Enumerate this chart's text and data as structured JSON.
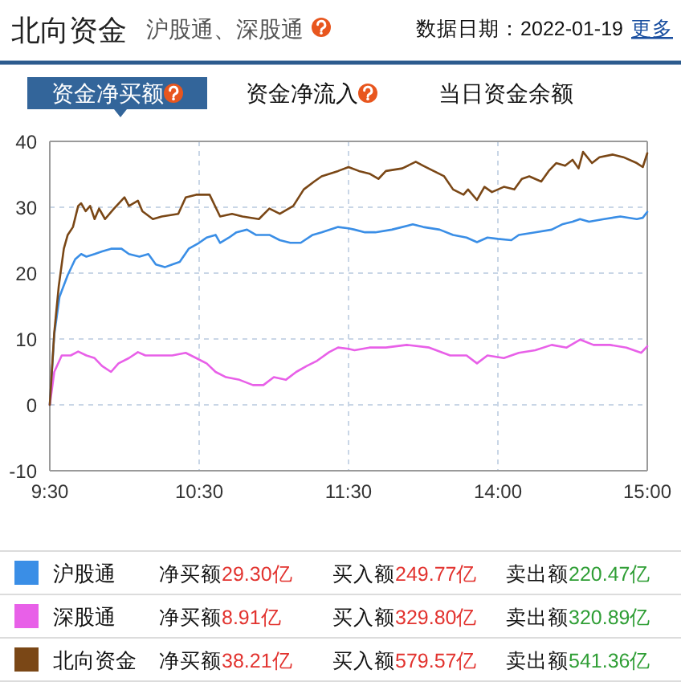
{
  "chart_data": [
    {
      "type": "line",
      "title": "北向资金",
      "subtitle": "沪股通、深股通",
      "annotations": [
        "数据日期：2022-01-19",
        "更多",
        "资金净买额",
        "资金净流入",
        "当日资金余额",
        "净买额29.30亿",
        "买入额249.77亿",
        "卖出额220.47亿",
        "净买额8.91亿",
        "买入额329.80亿",
        "卖出额320.89亿",
        "净买额38.21亿",
        "买入额579.57亿",
        "卖出额541.36亿"
      ],
      "xlim": [
        9.5,
        11.5
      ],
      "xticks": [
        {
          "value": 9.5,
          "label": "9:30"
        },
        {
          "value": 10.5,
          "label": "10:30"
        },
        {
          "value": 11.5,
          "label": "11:30"
        }
      ],
      "ylim": [
        -10,
        40
      ],
      "yticks": [
        -10,
        0,
        10,
        20,
        30,
        40
      ],
      "grid": true,
      "legend": "bottom",
      "line_style": "solid",
      "series": [
        {
          "name": "沪股通",
          "color": "#3a8ee6",
          "x": [
            9.5,
            9.53,
            9.565,
            9.62,
            9.67,
            9.71,
            9.745,
            9.8,
            9.85,
            9.91,
            9.98,
            10.03,
            10.1,
            10.16,
            10.21,
            10.27,
            10.32,
            10.37,
            10.43,
            10.5,
            10.55,
            10.61,
            10.64,
            10.7,
            10.75,
            10.82,
            10.88,
            10.97,
            11.04,
            11.11,
            11.18,
            11.26,
            11.32,
            11.43,
            11.5
          ],
          "values": [
            0,
            10.7,
            16.4,
            19.7,
            22.1,
            22.9,
            22.5,
            22.9,
            23.3,
            23.7,
            23.7,
            22.9,
            22.5,
            22.9,
            21.3,
            20.9,
            21.3,
            21.7,
            23.7,
            24.6,
            25.4,
            25.8,
            24.6,
            25.4,
            26.2,
            26.6,
            25.8,
            25.8,
            25.0,
            24.6,
            24.6,
            25.8,
            26.2,
            27.0,
            26.8
          ]
        },
        {
          "name": "深股通",
          "color": "#e860e8",
          "x": [
            9.5,
            9.53,
            9.58,
            9.64,
            9.69,
            9.745,
            9.8,
            9.85,
            9.91,
            9.96,
            10.03,
            10.09,
            10.14,
            10.23,
            10.32,
            10.41,
            10.48,
            10.55,
            10.61,
            10.68,
            10.77,
            10.86,
            10.93,
            11.0,
            11.08,
            11.15,
            11.22,
            11.29,
            11.37,
            11.43,
            11.5
          ],
          "values": [
            0,
            5.0,
            7.5,
            7.5,
            8.1,
            7.5,
            7.1,
            5.9,
            5.0,
            6.3,
            7.1,
            8.0,
            7.5,
            7.5,
            7.5,
            7.9,
            7.1,
            6.3,
            5.0,
            4.2,
            3.8,
            3.0,
            3.0,
            4.2,
            3.8,
            5.0,
            5.9,
            6.7,
            8.0,
            8.7,
            8.5
          ]
        },
        {
          "name": "北向资金",
          "color": "#7a4716",
          "x": [
            9.5,
            9.53,
            9.56,
            9.594,
            9.62,
            9.655,
            9.69,
            9.71,
            9.74,
            9.77,
            9.8,
            9.83,
            9.87,
            9.93,
            10.0,
            10.03,
            10.09,
            10.12,
            10.19,
            10.25,
            10.36,
            10.41,
            10.48,
            10.57,
            10.64,
            10.72,
            10.79,
            10.9,
            10.97,
            11.04,
            11.13,
            11.2,
            11.27,
            11.32,
            11.43,
            11.5
          ],
          "values": [
            0,
            11.0,
            18.0,
            23.7,
            25.8,
            27.0,
            30.2,
            30.6,
            29.4,
            30.2,
            28.2,
            29.8,
            28.2,
            29.8,
            31.5,
            30.2,
            31.0,
            29.4,
            28.2,
            28.6,
            29.0,
            31.5,
            31.9,
            31.9,
            28.6,
            29.0,
            28.6,
            28.2,
            29.8,
            29.0,
            30.2,
            32.7,
            33.9,
            34.7,
            35.5,
            36.1
          ]
        }
      ]
    },
    {
      "type": "line",
      "xlim": [
        13,
        15
      ],
      "xticks": [
        {
          "value": 14,
          "label": "14:00"
        },
        {
          "value": 15,
          "label": "15:00"
        }
      ],
      "ylim": [
        -10,
        40
      ],
      "yticks": [
        -10,
        0,
        10,
        20,
        30,
        40
      ],
      "tick_labels": "x",
      "grid": true,
      "line_style": "solid",
      "series": [
        {
          "color": "#3a8ee6",
          "x": [
            13.0,
            13.04,
            13.11,
            13.18,
            13.29,
            13.43,
            13.5,
            13.61,
            13.7,
            13.79,
            13.86,
            13.93,
            14.0,
            14.09,
            14.14,
            14.25,
            14.36,
            14.43,
            14.5,
            14.55,
            14.61,
            14.71,
            14.82,
            14.93,
            14.97,
            15.0
          ],
          "values": [
            26.8,
            26.6,
            26.2,
            26.2,
            26.6,
            27.4,
            27.0,
            26.6,
            25.8,
            25.4,
            24.7,
            25.4,
            25.2,
            25.0,
            25.8,
            26.2,
            26.6,
            27.4,
            27.8,
            28.2,
            27.8,
            28.2,
            28.6,
            28.2,
            28.4,
            29.3
          ]
        },
        {
          "color": "#e860e8",
          "x": [
            13.0,
            13.04,
            13.14,
            13.25,
            13.39,
            13.54,
            13.68,
            13.79,
            13.86,
            13.93,
            14.04,
            14.14,
            14.25,
            14.36,
            14.46,
            14.55,
            14.64,
            14.75,
            14.86,
            14.96,
            15.0
          ],
          "values": [
            8.5,
            8.3,
            8.7,
            8.7,
            9.1,
            8.7,
            7.5,
            7.5,
            6.3,
            7.5,
            7.1,
            7.9,
            8.3,
            9.1,
            8.7,
            9.9,
            9.1,
            9.1,
            8.7,
            7.9,
            8.9
          ]
        },
        {
          "color": "#7a4716",
          "x": [
            13.0,
            13.07,
            13.14,
            13.2,
            13.25,
            13.36,
            13.45,
            13.5,
            13.57,
            13.64,
            13.7,
            13.77,
            13.8,
            13.86,
            13.91,
            13.96,
            14.04,
            14.11,
            14.16,
            14.21,
            14.29,
            14.34,
            14.39,
            14.45,
            14.5,
            14.54,
            14.57,
            14.63,
            14.68,
            14.77,
            14.84,
            14.93,
            14.97,
            15.0
          ],
          "values": [
            36.1,
            35.5,
            35.1,
            34.3,
            35.5,
            35.9,
            36.9,
            36.3,
            35.5,
            34.7,
            32.7,
            31.9,
            32.7,
            31.1,
            33.1,
            32.3,
            33.1,
            32.7,
            34.3,
            34.7,
            33.9,
            35.5,
            36.7,
            36.3,
            37.2,
            35.9,
            38.4,
            36.7,
            37.6,
            38.0,
            37.6,
            36.7,
            36.1,
            38.2
          ]
        }
      ]
    }
  ]
}
